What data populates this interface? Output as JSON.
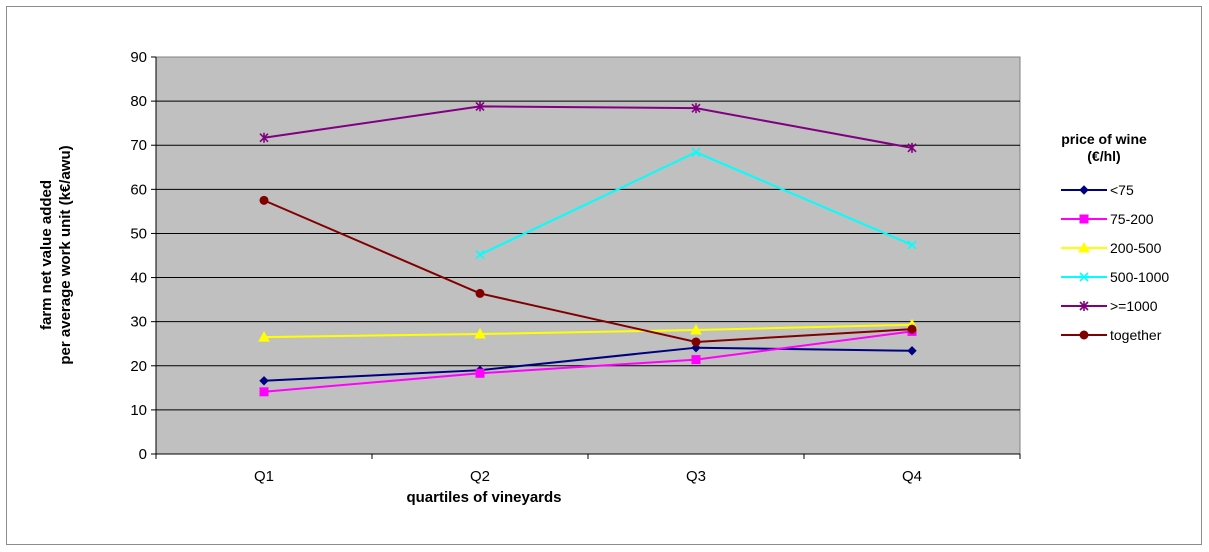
{
  "chart_data": {
    "type": "line",
    "title": "",
    "xlabel": "quartiles of vineyards",
    "ylabel": [
      "farm net value added",
      "per average work unit (k€/awu)"
    ],
    "categories": [
      "Q1",
      "Q2",
      "Q3",
      "Q4"
    ],
    "ylim": [
      0,
      90
    ],
    "ytick_step": 10,
    "yticks": [
      "0",
      "10",
      "20",
      "30",
      "40",
      "50",
      "60",
      "70",
      "80",
      "90"
    ],
    "grid": true,
    "plot_background": "#c0c0c0",
    "legend_position": "right",
    "legend_title": [
      "price of wine",
      "(€/hl)"
    ],
    "series": [
      {
        "name": "<75",
        "color": "#000080",
        "marker": "diamond",
        "values": [
          16.6,
          19.0,
          24.1,
          23.4
        ]
      },
      {
        "name": "75-200",
        "color": "#ff00ff",
        "marker": "square",
        "values": [
          14.1,
          18.3,
          21.4,
          27.8
        ]
      },
      {
        "name": "200-500",
        "color": "#ffff00",
        "marker": "triangle",
        "values": [
          26.5,
          27.2,
          28.1,
          29.3
        ]
      },
      {
        "name": "500-1000",
        "color": "#00ffff",
        "marker": "x",
        "values": [
          null,
          45.2,
          68.4,
          47.4
        ]
      },
      {
        "name": ">=1000",
        "color": "#800080",
        "marker": "star",
        "values": [
          71.7,
          78.8,
          78.4,
          69.4
        ]
      },
      {
        "name": "together",
        "color": "#800000",
        "marker": "circle",
        "values": [
          57.5,
          36.4,
          25.4,
          28.3
        ]
      }
    ]
  }
}
